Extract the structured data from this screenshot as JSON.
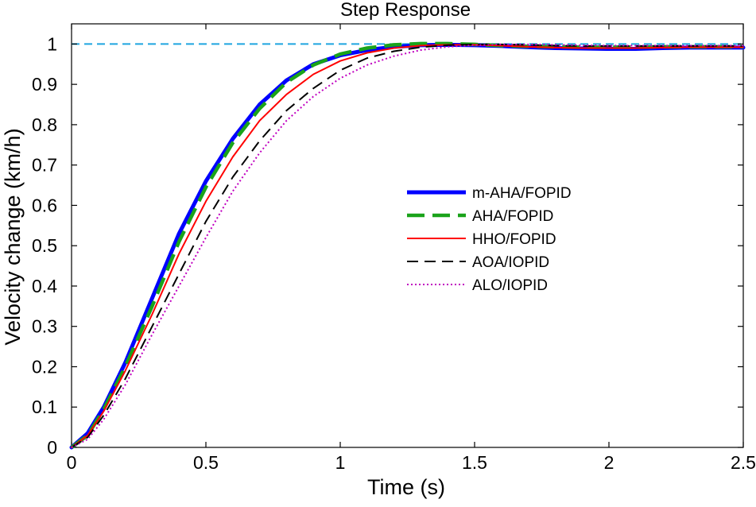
{
  "chart_data": {
    "type": "line",
    "title": "Step Response",
    "xlabel": "Time (s)",
    "ylabel": "Velocity change (km/h)",
    "xlim": [
      0,
      2.5
    ],
    "ylim": [
      0,
      1.05
    ],
    "xticks": [
      0,
      0.5,
      1,
      1.5,
      2,
      2.5
    ],
    "xtick_labels": [
      "0",
      "0.5",
      "1",
      "1.5",
      "2",
      "2.5"
    ],
    "yticks": [
      0,
      0.1,
      0.2,
      0.3,
      0.4,
      0.5,
      0.6,
      0.7,
      0.8,
      0.9,
      1
    ],
    "ytick_labels": [
      "0",
      "0.1",
      "0.2",
      "0.3",
      "0.4",
      "0.5",
      "0.6",
      "0.7",
      "0.8",
      "0.9",
      "1"
    ],
    "grid": false,
    "legend_position": "center-right",
    "reference_line": {
      "y": 1,
      "color": "#1ea5e0",
      "style": "dashed"
    },
    "series": [
      {
        "name": "m-AHA/FOPID",
        "color": "#0000ff",
        "style": "solid-thick",
        "x": [
          0,
          0.06,
          0.12,
          0.2,
          0.3,
          0.4,
          0.5,
          0.6,
          0.7,
          0.8,
          0.9,
          1.0,
          1.1,
          1.2,
          1.3,
          1.4,
          1.5,
          1.6,
          1.7,
          1.8,
          1.9,
          2.0,
          2.1,
          2.2,
          2.3,
          2.4,
          2.5
        ],
        "values": [
          0,
          0.035,
          0.1,
          0.21,
          0.37,
          0.53,
          0.66,
          0.765,
          0.85,
          0.91,
          0.95,
          0.972,
          0.985,
          0.993,
          0.997,
          0.998,
          0.997,
          0.995,
          0.992,
          0.99,
          0.989,
          0.988,
          0.988,
          0.99,
          0.991,
          0.991,
          0.991
        ]
      },
      {
        "name": "AHA/FOPID",
        "color": "#1aa31a",
        "style": "dashed-thick",
        "x": [
          0,
          0.06,
          0.12,
          0.2,
          0.3,
          0.4,
          0.5,
          0.6,
          0.7,
          0.8,
          0.9,
          1.0,
          1.1,
          1.2,
          1.3,
          1.4,
          1.5,
          1.6,
          1.7,
          1.8,
          1.9,
          2.0,
          2.1,
          2.2,
          2.3,
          2.4,
          2.5
        ],
        "values": [
          0,
          0.03,
          0.095,
          0.2,
          0.35,
          0.51,
          0.645,
          0.755,
          0.84,
          0.905,
          0.948,
          0.975,
          0.99,
          0.998,
          1.001,
          1.001,
          0.999,
          0.996,
          0.994,
          0.993,
          0.992,
          0.992,
          0.992,
          0.993,
          0.993,
          0.993,
          0.993
        ]
      },
      {
        "name": "HHO/FOPID",
        "color": "#ff0000",
        "style": "solid",
        "x": [
          0,
          0.06,
          0.12,
          0.2,
          0.3,
          0.4,
          0.5,
          0.6,
          0.7,
          0.8,
          0.9,
          1.0,
          1.1,
          1.2,
          1.3,
          1.4,
          1.5,
          1.6,
          1.7,
          1.8,
          1.9,
          2.0,
          2.1,
          2.2,
          2.3,
          2.4,
          2.5
        ],
        "values": [
          0,
          0.03,
          0.09,
          0.19,
          0.33,
          0.48,
          0.61,
          0.72,
          0.81,
          0.875,
          0.925,
          0.958,
          0.978,
          0.99,
          0.996,
          0.998,
          0.998,
          0.996,
          0.993,
          0.991,
          0.99,
          0.99,
          0.99,
          0.991,
          0.992,
          0.992,
          0.992
        ]
      },
      {
        "name": "AOA/IOPID",
        "color": "#000000",
        "style": "dashed",
        "x": [
          0,
          0.06,
          0.12,
          0.2,
          0.3,
          0.4,
          0.5,
          0.6,
          0.7,
          0.8,
          0.9,
          1.0,
          1.1,
          1.2,
          1.3,
          1.4,
          1.5,
          1.6,
          1.7,
          1.8,
          1.9,
          2.0,
          2.1,
          2.2,
          2.3,
          2.4,
          2.5
        ],
        "values": [
          0,
          0.025,
          0.08,
          0.17,
          0.3,
          0.43,
          0.56,
          0.67,
          0.76,
          0.835,
          0.89,
          0.935,
          0.965,
          0.982,
          0.992,
          0.997,
          0.999,
          0.999,
          0.998,
          0.996,
          0.995,
          0.995,
          0.995,
          0.995,
          0.995,
          0.995,
          0.995
        ]
      },
      {
        "name": "ALO/IOPID",
        "color": "#c000c0",
        "style": "dotted",
        "x": [
          0,
          0.06,
          0.12,
          0.2,
          0.3,
          0.4,
          0.5,
          0.6,
          0.7,
          0.8,
          0.9,
          1.0,
          1.1,
          1.2,
          1.3,
          1.4,
          1.5,
          1.6,
          1.7,
          1.8,
          1.9,
          2.0,
          2.1,
          2.2,
          2.3,
          2.4,
          2.5
        ],
        "values": [
          0,
          0.02,
          0.07,
          0.155,
          0.28,
          0.4,
          0.52,
          0.635,
          0.73,
          0.81,
          0.87,
          0.915,
          0.948,
          0.97,
          0.985,
          0.993,
          0.997,
          0.999,
          0.999,
          0.998,
          0.997,
          0.996,
          0.996,
          0.996,
          0.996,
          0.996,
          0.996
        ]
      }
    ]
  }
}
